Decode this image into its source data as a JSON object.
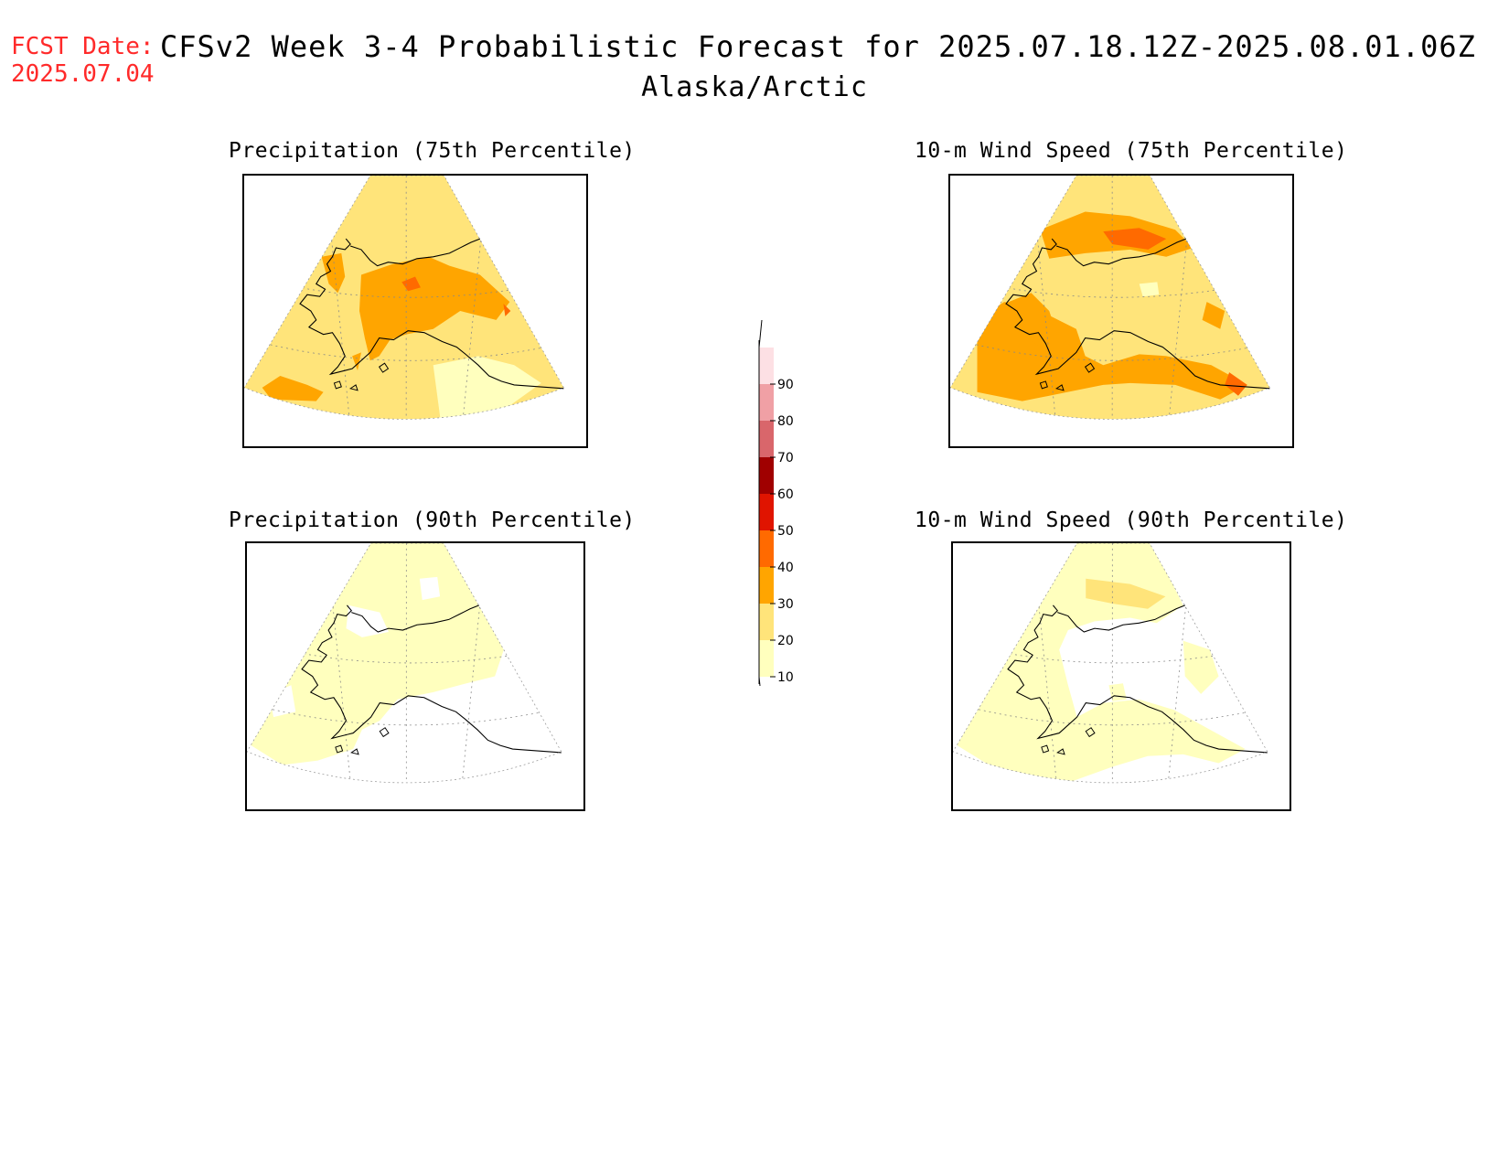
{
  "header": {
    "fcst_label": "FCST Date:",
    "fcst_date": "2025.07.04",
    "title": "CFSv2 Week 3-4 Probabilistic Forecast for 2025.07.18.12Z-2025.08.01.06Z",
    "region": "Alaska/Arctic"
  },
  "panels": [
    {
      "title": "Precipitation (75th Percentile)",
      "variable": "precipitation",
      "percentile": 75
    },
    {
      "title": "10-m Wind Speed (75th Percentile)",
      "variable": "wind_speed_10m",
      "percentile": 75
    },
    {
      "title": "Precipitation (90th Percentile)",
      "variable": "precipitation",
      "percentile": 90
    },
    {
      "title": "10-m Wind Speed (90th Percentile)",
      "variable": "wind_speed_10m",
      "percentile": 90
    }
  ],
  "colorbar": {
    "levels": [
      "10",
      "20",
      "30",
      "40",
      "50",
      "60",
      "70",
      "80",
      "90"
    ],
    "colors": [
      "#ffffbe",
      "#ffe47a",
      "#ffa500",
      "#ff6a00",
      "#e01400",
      "#a00000",
      "#d9666b",
      "#f0a0a5",
      "#fde0e4"
    ]
  }
}
